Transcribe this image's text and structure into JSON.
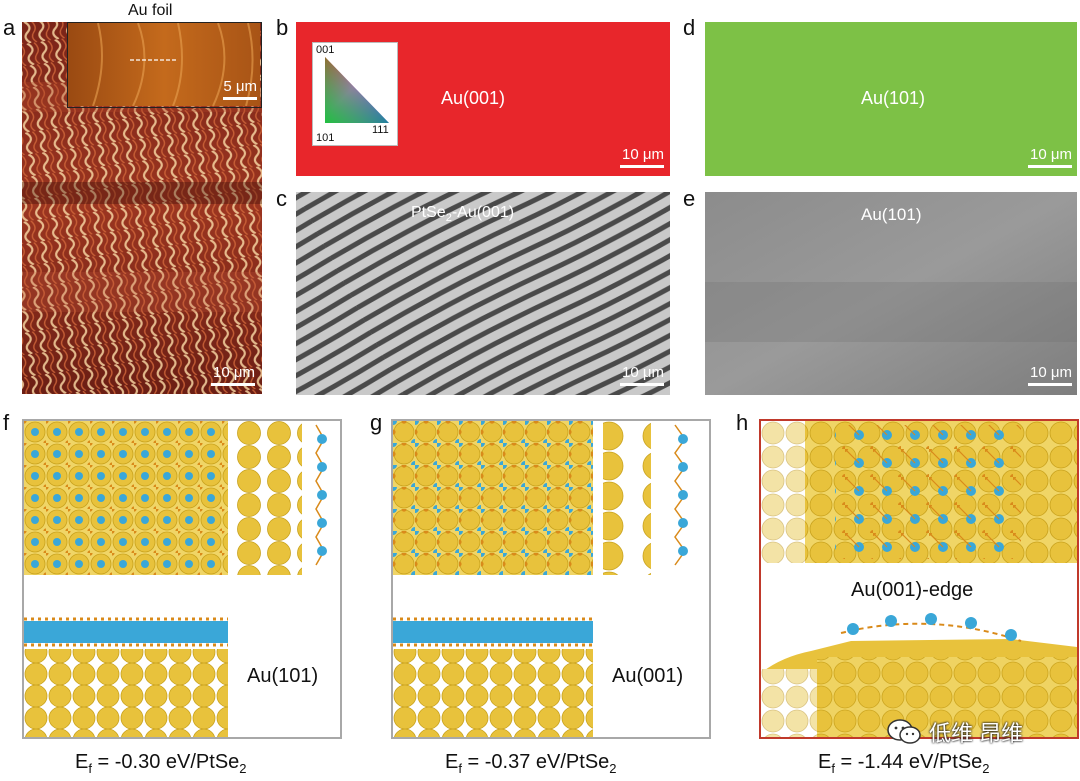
{
  "panel_letters": {
    "a": "a",
    "b": "b",
    "c": "c",
    "d": "d",
    "e": "e",
    "f": "f",
    "g": "g",
    "h": "h"
  },
  "panel_a": {
    "inset_title": "Au foil",
    "inset_scale": "5 μm",
    "scale": "10 μm"
  },
  "panel_b": {
    "label": "Au(001)",
    "scale": "10 μm",
    "legend": {
      "top": "001",
      "bottom_left": "101",
      "bottom_right": "111"
    }
  },
  "panel_c": {
    "label_pre": "PtSe",
    "label_sub": "2",
    "label_post": "-Au(001)",
    "scale": "10 μm"
  },
  "panel_d": {
    "label": "Au(101)",
    "scale": "10 μm"
  },
  "panel_e": {
    "label": "Au(101)",
    "scale": "10 μm"
  },
  "panel_f": {
    "label": "Au(101)",
    "ef_pre": "E",
    "ef_sub": "f",
    "ef_value": " = -0.30 eV/PtSe",
    "ef_sub2": "2"
  },
  "panel_g": {
    "label": "Au(001)",
    "ef_pre": "E",
    "ef_sub": "f",
    "ef_value": " = -0.37 eV/PtSe",
    "ef_sub2": "2"
  },
  "panel_h": {
    "label": "Au(001)-edge",
    "ef_pre": "E",
    "ef_sub": "f",
    "ef_value": " = -1.44 eV/PtSe",
    "ef_sub2": "2"
  },
  "watermark": {
    "text": "低维 昂维"
  },
  "colors": {
    "au001": "#e8262b",
    "au101": "#7dc146",
    "gold": "#e8c23c",
    "pt": "#3aa7d8",
    "se": "#d98a1a",
    "frame_h": "#c0392b"
  }
}
